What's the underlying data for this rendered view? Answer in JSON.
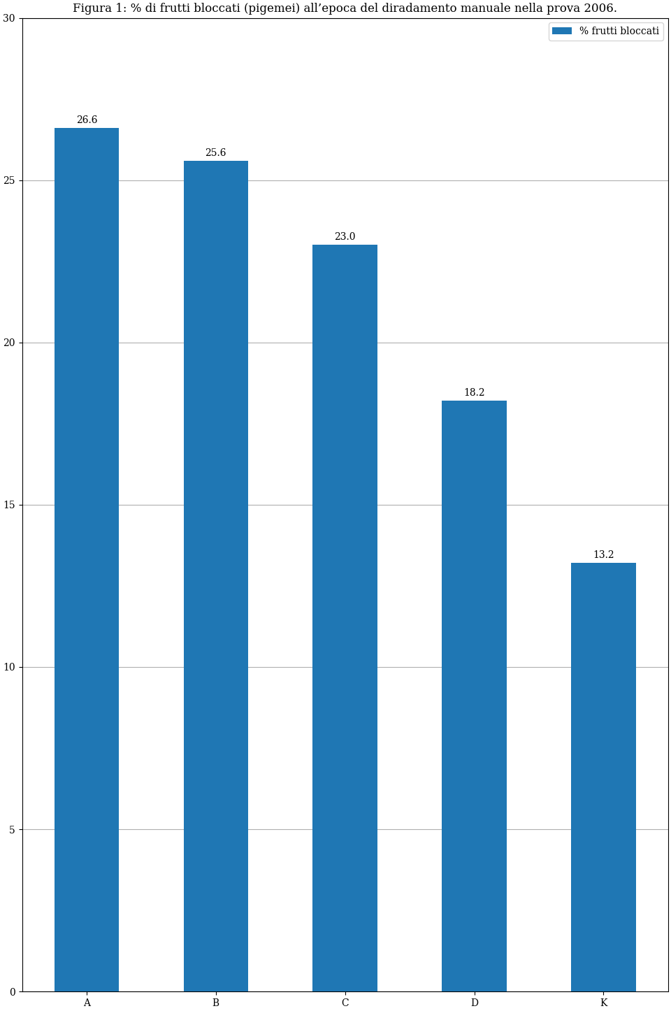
{
  "chart_data": {
    "type": "bar",
    "title": "Figura 1: % di frutti bloccati (pigemei) all’epoca del diradamento manuale nella prova 2006.",
    "categories": [
      "A",
      "B",
      "C",
      "D",
      "K"
    ],
    "series": [
      {
        "name": "% frutti bloccati",
        "values": [
          26.6,
          25.6,
          23.0,
          18.2,
          13.2
        ]
      }
    ],
    "ylim": [
      0,
      30
    ],
    "yticks": [
      0,
      5,
      10,
      15,
      20,
      25,
      30
    ],
    "grid": true,
    "legend": "upper right",
    "data_labels": true
  }
}
